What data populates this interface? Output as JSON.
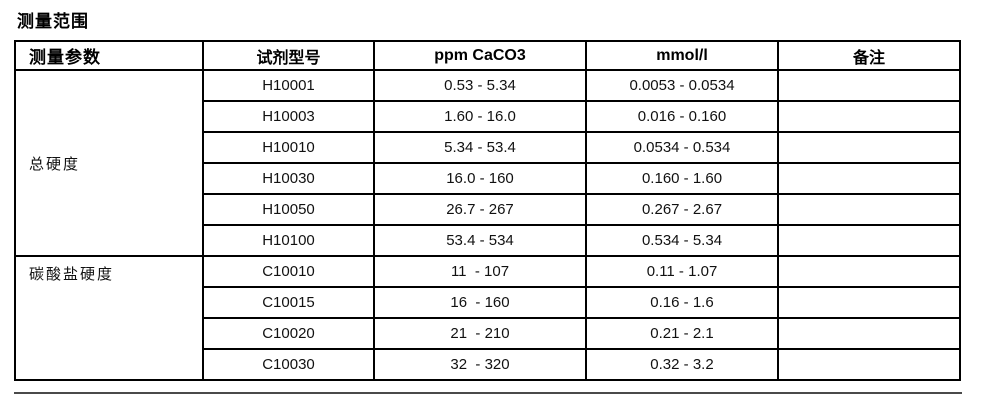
{
  "page": {
    "title": "测量范围"
  },
  "table": {
    "headers": [
      "测量参数",
      "试剂型号",
      "ppm CaCO3",
      "mmol/l",
      "备注"
    ],
    "groups": [
      {
        "parameter": "总硬度",
        "rows": [
          {
            "model": "H10001",
            "ppm": "0.53 - 5.34",
            "mmol": "0.0053 - 0.0534",
            "note": ""
          },
          {
            "model": "H10003",
            "ppm": "1.60 - 16.0",
            "mmol": "0.016 - 0.160",
            "note": ""
          },
          {
            "model": "H10010",
            "ppm": "5.34 - 53.4",
            "mmol": "0.0534 - 0.534",
            "note": ""
          },
          {
            "model": "H10030",
            "ppm": "16.0 - 160",
            "mmol": "0.160 - 1.60",
            "note": ""
          },
          {
            "model": "H10050",
            "ppm": "26.7 - 267",
            "mmol": "0.267 - 2.67",
            "note": ""
          },
          {
            "model": "H10100",
            "ppm": "53.4 - 534",
            "mmol": "0.534 - 5.34",
            "note": ""
          }
        ]
      },
      {
        "parameter": "碳酸盐硬度",
        "rows": [
          {
            "model": "C10010",
            "ppm": "11  - 107",
            "mmol": "0.11 - 1.07",
            "note": ""
          },
          {
            "model": "C10015",
            "ppm": "16  - 160",
            "mmol": "0.16 - 1.6",
            "note": ""
          },
          {
            "model": "C10020",
            "ppm": "21  - 210",
            "mmol": "0.21 - 2.1",
            "note": ""
          },
          {
            "model": "C10030",
            "ppm": "32  - 320",
            "mmol": "0.32 - 3.2",
            "note": ""
          }
        ]
      }
    ]
  }
}
